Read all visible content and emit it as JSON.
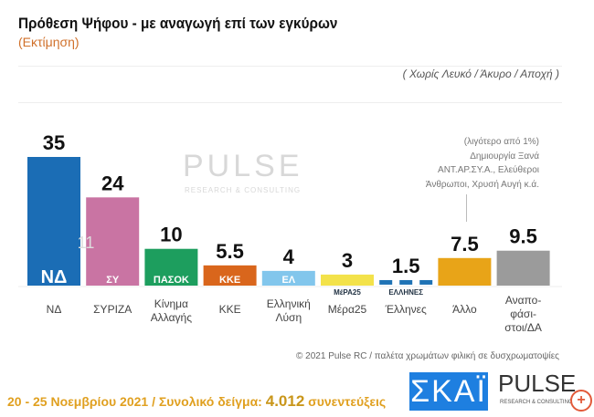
{
  "header": {
    "title": "Πρόθεση Ψήφου - με αναγωγή επί των εγκύρων",
    "subtitle": "(Εκτίμηση)",
    "note": "( Χωρίς Λευκό / Άκυρο / Αποχή )"
  },
  "chart_data": {
    "type": "bar",
    "title": "Πρόθεση Ψήφου - με αναγωγή επί των εγκύρων",
    "categories": [
      "ΝΔ",
      "ΣΥΡΙΖΑ",
      "Κίνημα Αλλαγής",
      "ΚΚΕ",
      "Ελληνική Λύση",
      "Μέρα25",
      "Έλληνες",
      "Άλλο",
      "Αναπο- φάσι- στοι/ΔΑ"
    ],
    "values": [
      35,
      24,
      10,
      5.5,
      4,
      3,
      1.5,
      7.5,
      9.5
    ],
    "labels": [
      "35",
      "24",
      "10",
      "5.5",
      "4",
      "3",
      "1.5",
      "7.5",
      "9.5"
    ],
    "colors": [
      "#1b6db5",
      "#c974a3",
      "#1d9e5e",
      "#d9661c",
      "#82c6ec",
      "#f3e24a",
      "#1f73b5",
      "#e8a418",
      "#9b9b9b"
    ],
    "logos": [
      "ΝΔ",
      "ΣΥ",
      "ΠΑΣΟΚ",
      "ΚΚΕ",
      "ΕΛ",
      "ΜέΡΑ25",
      "ΕΛΛΗΝΕΣ",
      "",
      ""
    ],
    "ylim": [
      0,
      36
    ],
    "xlabel": "",
    "ylabel": "",
    "grid": false
  },
  "annotation": [
    "(λιγότερο από 1%)",
    "Δημιουργία Ξανά",
    "ΑΝΤ.ΑΡ.ΣΥ.Α., Ελεύθεροι",
    "Άνθρωποι, Χρυσή Αυγή  κ.ά."
  ],
  "watermark": {
    "text": "PULSE",
    "sub": "RESEARCH & CONSULTING",
    "number": "11"
  },
  "copyright": "© 2021 Pulse RC  /  παλέτα χρωμάτων φιλική σε δυσχρωματοψίες",
  "footer": {
    "dates": "20 - 25  Νοεμβρίου 2021  /  Συνολικό δείγμα: ",
    "sample": "4.012",
    "unit": " συνεντεύξεις"
  },
  "logos": {
    "skai": "ΣΚΑΪ",
    "pulse": "PULSE",
    "pulse_sub": "RESEARCH & CONSULTING"
  }
}
